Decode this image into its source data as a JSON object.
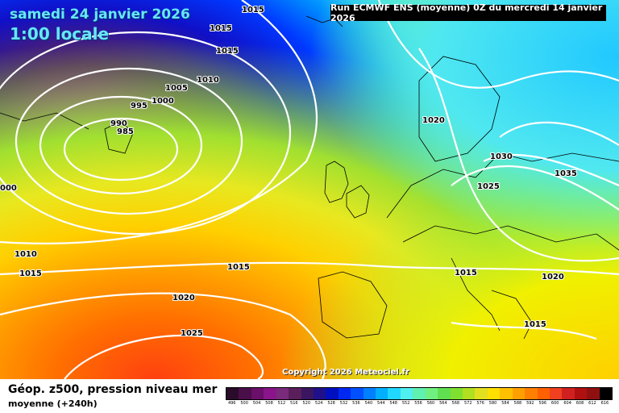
{
  "header": {
    "date": "samedi 24 janvier 2026",
    "time": "1:00 locale",
    "run": "Run ECMWF ENS (moyenne) 0Z du mercredi 14 janvier 2026"
  },
  "copyright": "Copyright 2026 Meteociel.fr",
  "footer": {
    "title": "Géop. z500, pression niveau mer",
    "subtitle": "moyenne  (+240h)"
  },
  "isobar_labels": [
    "1015",
    "1015",
    "1015",
    "1010",
    "1005",
    "1000",
    "995",
    "990",
    "985",
    "000",
    "1010",
    "1015",
    "1015",
    "1020",
    "1025",
    "1020",
    "1030",
    "1025",
    "1035",
    "1015",
    "1020",
    "1015"
  ],
  "legend": {
    "values": [
      "496",
      "500",
      "504",
      "508",
      "512",
      "516",
      "520",
      "524",
      "528",
      "532",
      "536",
      "540",
      "544",
      "548",
      "552",
      "556",
      "560",
      "564",
      "568",
      "572",
      "576",
      "580",
      "584",
      "588",
      "592",
      "596",
      "600",
      "604",
      "608",
      "612",
      "616"
    ],
    "colors": [
      "#2a0b2a",
      "#4a0e4a",
      "#6a0f6a",
      "#8a158a",
      "#7a2a7a",
      "#5a1e5a",
      "#3a1560",
      "#20108a",
      "#0010c0",
      "#0028f0",
      "#0050ff",
      "#0080ff",
      "#00b0ff",
      "#20d8ff",
      "#50f0f0",
      "#60f0b0",
      "#70f080",
      "#60e050",
      "#80e030",
      "#b0e020",
      "#e0e020",
      "#ffe000",
      "#ffc000",
      "#ffa000",
      "#ff8000",
      "#ff6000",
      "#f04020",
      "#d02020",
      "#b01010",
      "#901010",
      "#000000"
    ]
  }
}
